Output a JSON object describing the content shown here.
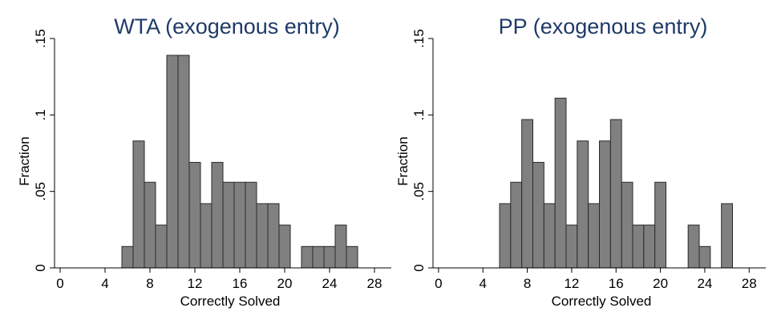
{
  "chart_data": [
    {
      "type": "bar",
      "title": "WTA (exogenous entry)",
      "xlabel": "Correctly Solved",
      "ylabel": "Fraction",
      "xlim": [
        -0.5,
        29.5
      ],
      "ylim": [
        0,
        0.15
      ],
      "xticks": [
        "0",
        "4",
        "8",
        "12",
        "16",
        "20",
        "24",
        "28"
      ],
      "yticks": [
        "0",
        ".05",
        ".1",
        ".15"
      ],
      "bin_width": 1,
      "bins": [
        {
          "x": 6,
          "value": 0.014
        },
        {
          "x": 7,
          "value": 0.083
        },
        {
          "x": 8,
          "value": 0.056
        },
        {
          "x": 9,
          "value": 0.028
        },
        {
          "x": 10,
          "value": 0.139
        },
        {
          "x": 11,
          "value": 0.139
        },
        {
          "x": 12,
          "value": 0.069
        },
        {
          "x": 13,
          "value": 0.042
        },
        {
          "x": 14,
          "value": 0.069
        },
        {
          "x": 15,
          "value": 0.056
        },
        {
          "x": 16,
          "value": 0.056
        },
        {
          "x": 17,
          "value": 0.056
        },
        {
          "x": 18,
          "value": 0.042
        },
        {
          "x": 19,
          "value": 0.042
        },
        {
          "x": 20,
          "value": 0.028
        },
        {
          "x": 22,
          "value": 0.014
        },
        {
          "x": 23,
          "value": 0.014
        },
        {
          "x": 24,
          "value": 0.014
        },
        {
          "x": 25,
          "value": 0.028
        },
        {
          "x": 26,
          "value": 0.014
        }
      ]
    },
    {
      "type": "bar",
      "title": "PP  (exogenous entry)",
      "xlabel": "Correctly Solved",
      "ylabel": "Fraction",
      "xlim": [
        -0.5,
        29.5
      ],
      "ylim": [
        0,
        0.15
      ],
      "xticks": [
        "0",
        "4",
        "8",
        "12",
        "16",
        "20",
        "24",
        "28"
      ],
      "yticks": [
        "0",
        ".05",
        ".1",
        ".15"
      ],
      "bin_width": 1,
      "bins": [
        {
          "x": 6,
          "value": 0.042
        },
        {
          "x": 7,
          "value": 0.056
        },
        {
          "x": 8,
          "value": 0.097
        },
        {
          "x": 9,
          "value": 0.069
        },
        {
          "x": 10,
          "value": 0.042
        },
        {
          "x": 11,
          "value": 0.111
        },
        {
          "x": 12,
          "value": 0.028
        },
        {
          "x": 13,
          "value": 0.083
        },
        {
          "x": 14,
          "value": 0.042
        },
        {
          "x": 15,
          "value": 0.083
        },
        {
          "x": 16,
          "value": 0.097
        },
        {
          "x": 17,
          "value": 0.056
        },
        {
          "x": 18,
          "value": 0.028
        },
        {
          "x": 19,
          "value": 0.028
        },
        {
          "x": 20,
          "value": 0.056
        },
        {
          "x": 23,
          "value": 0.028
        },
        {
          "x": 24,
          "value": 0.014
        },
        {
          "x": 26,
          "value": 0.042
        }
      ]
    }
  ]
}
